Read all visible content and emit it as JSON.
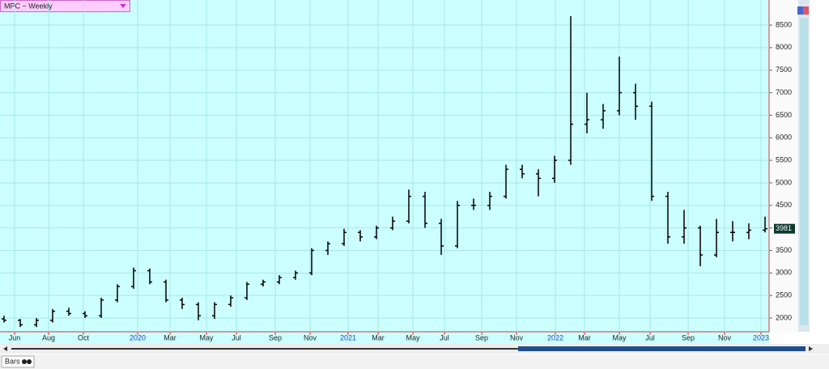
{
  "header": {
    "title": "MPC ~ Weekly"
  },
  "toolbar": {
    "chart_style": "Bars"
  },
  "chart_data": {
    "type": "ohlc",
    "categories": [
      null,
      null,
      null,
      null,
      null,
      null,
      null,
      null,
      null,
      null,
      null,
      null,
      null,
      null,
      null,
      null,
      null,
      null,
      null,
      null,
      null,
      null,
      null,
      null,
      null,
      null,
      null,
      null,
      null,
      null,
      null,
      null,
      null,
      null,
      null,
      null,
      null,
      null,
      null,
      null,
      null,
      null,
      null,
      null,
      null,
      null,
      null,
      null
    ],
    "open": [
      1980,
      1950,
      1850,
      1950,
      2150,
      2100,
      2050,
      2400,
      2700,
      3050,
      2800,
      2400,
      2300,
      2050,
      2300,
      2450,
      2750,
      2800,
      2900,
      3000,
      3500,
      3650,
      3900,
      3800,
      4000,
      4150,
      4700,
      4100,
      3600,
      4500,
      4500,
      4700,
      5300,
      5200,
      5100,
      5500,
      6300,
      6400,
      6600,
      7000,
      6700,
      4700,
      3800,
      4000,
      3400,
      3900,
      3900,
      3950
    ],
    "high": [
      2050,
      1980,
      2000,
      2200,
      2230,
      2150,
      2450,
      2750,
      3120,
      3100,
      2850,
      2450,
      2350,
      2350,
      2500,
      2800,
      2850,
      2950,
      3050,
      3550,
      3700,
      3980,
      3950,
      4050,
      4250,
      4850,
      4800,
      4200,
      4600,
      4650,
      4800,
      5400,
      5400,
      5300,
      5600,
      8700,
      7000,
      6750,
      7800,
      7200,
      6800,
      4800,
      4400,
      4050,
      4200,
      4150,
      4100,
      4250
    ],
    "low": [
      1900,
      1800,
      1800,
      1900,
      2050,
      2000,
      2000,
      2350,
      2650,
      2750,
      2350,
      2200,
      1950,
      1980,
      2250,
      2400,
      2700,
      2750,
      2850,
      2950,
      3400,
      3600,
      3700,
      3750,
      3950,
      4100,
      4000,
      3400,
      3550,
      4400,
      4400,
      4650,
      5100,
      4700,
      5000,
      5400,
      6100,
      6200,
      6500,
      6400,
      4600,
      3650,
      3650,
      3150,
      3350,
      3700,
      3750,
      3900
    ],
    "close": [
      1950,
      1850,
      1950,
      2150,
      2100,
      2050,
      2400,
      2700,
      3050,
      2800,
      2400,
      2300,
      2050,
      2300,
      2450,
      2750,
      2800,
      2900,
      3000,
      3500,
      3650,
      3900,
      3800,
      4000,
      4150,
      4700,
      4100,
      3600,
      4500,
      4500,
      4700,
      5300,
      5200,
      5100,
      5500,
      6300,
      6400,
      6600,
      7000,
      6700,
      4700,
      3800,
      4000,
      3400,
      3900,
      3900,
      3950,
      3981
    ],
    "color": "#000000",
    "ylim": [
      1695,
      9057
    ],
    "yticks": [
      2000,
      2500,
      3000,
      3500,
      4000,
      4500,
      5000,
      5500,
      6000,
      6500,
      7000,
      7500,
      8000,
      8500
    ],
    "xticks": [
      {
        "value": 0.65,
        "label": "Jun"
      },
      {
        "value": 2.75,
        "label": "Aug"
      },
      {
        "value": 4.9,
        "label": "Oct"
      },
      {
        "value": 8.25,
        "label": "2020"
      },
      {
        "value": 10.25,
        "label": "Mar"
      },
      {
        "value": 12.5,
        "label": "May"
      },
      {
        "value": 14.35,
        "label": "Jul"
      },
      {
        "value": 16.75,
        "label": "Sep"
      },
      {
        "value": 18.9,
        "label": "Nov"
      },
      {
        "value": 21.25,
        "label": "2021"
      },
      {
        "value": 23.1,
        "label": "Mar"
      },
      {
        "value": 25.25,
        "label": "May"
      },
      {
        "value": 27.2,
        "label": "Jul"
      },
      {
        "value": 29.5,
        "label": "Sep"
      },
      {
        "value": 31.65,
        "label": "Nov"
      },
      {
        "value": 34.05,
        "label": "2022"
      },
      {
        "value": 35.85,
        "label": "Mar"
      },
      {
        "value": 38,
        "label": "May"
      },
      {
        "value": 39.9,
        "label": "Jul"
      },
      {
        "value": 42.25,
        "label": "Sep"
      },
      {
        "value": 44.5,
        "label": "Nov"
      },
      {
        "value": 46.75,
        "label": "2023"
      }
    ],
    "grid": true
  }
}
